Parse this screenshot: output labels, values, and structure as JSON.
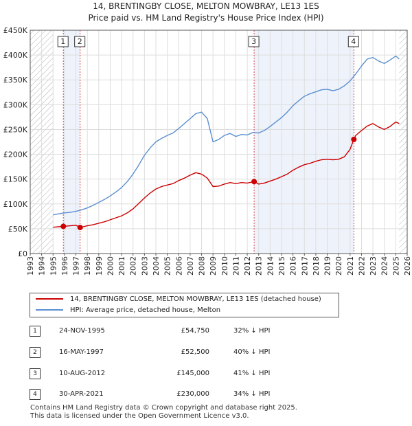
{
  "title_line1": "14, BRENTINGBY CLOSE, MELTON MOWBRAY, LE13 1ES",
  "title_line2": "Price paid vs. HM Land Registry's House Price Index (HPI)",
  "legend": {
    "property_label": "14, BRENTINGBY CLOSE, MELTON MOWBRAY, LE13 1ES (detached house)",
    "hpi_label": "HPI: Average price, detached house, Melton"
  },
  "colors": {
    "property": "#cc0000",
    "hpi": "#5b8fd0",
    "shade": "#eef2fb",
    "hatch": "#aaaaaa",
    "grid": "#dddddd",
    "vline": "#cc0000"
  },
  "sales": [
    {
      "num": "1",
      "date": "24-NOV-1995",
      "price": "£54,750",
      "hpi": "32% ↓ HPI"
    },
    {
      "num": "2",
      "date": "16-MAY-1997",
      "price": "£52,500",
      "hpi": "40% ↓ HPI"
    },
    {
      "num": "3",
      "date": "10-AUG-2012",
      "price": "£145,000",
      "hpi": "41% ↓ HPI"
    },
    {
      "num": "4",
      "date": "30-APR-2021",
      "price": "£230,000",
      "hpi": "34% ↓ HPI"
    }
  ],
  "footer_line1": "Contains HM Land Registry data © Crown copyright and database right 2025.",
  "footer_line2": "This data is licensed under the Open Government Licence v3.0.",
  "chart_data": {
    "type": "line",
    "title": "14, BRENTINGBY CLOSE, MELTON MOWBRAY, LE13 1ES",
    "subtitle": "Price paid vs. HM Land Registry's House Price Index (HPI)",
    "xlim": [
      1993,
      2026
    ],
    "ylim": [
      0,
      450000
    ],
    "x_ticks": [
      "1993",
      "1994",
      "1995",
      "1996",
      "1997",
      "1998",
      "1999",
      "2000",
      "2001",
      "2002",
      "2003",
      "2004",
      "2005",
      "2006",
      "2007",
      "2008",
      "2009",
      "2010",
      "2011",
      "2012",
      "2013",
      "2014",
      "2015",
      "2016",
      "2017",
      "2018",
      "2019",
      "2020",
      "2021",
      "2022",
      "2023",
      "2024",
      "2025",
      "2026"
    ],
    "y_ticks": [
      {
        "value": 0,
        "label": "£0"
      },
      {
        "value": 50000,
        "label": "£50K"
      },
      {
        "value": 100000,
        "label": "£100K"
      },
      {
        "value": 150000,
        "label": "£150K"
      },
      {
        "value": 200000,
        "label": "£200K"
      },
      {
        "value": 250000,
        "label": "£250K"
      },
      {
        "value": 300000,
        "label": "£300K"
      },
      {
        "value": 350000,
        "label": "£350K"
      },
      {
        "value": 400000,
        "label": "£400K"
      },
      {
        "value": 450000,
        "label": "£450K"
      }
    ],
    "data_range": [
      1995.0,
      2025.3
    ],
    "shaded_periods": [
      [
        1995.9,
        1997.37
      ],
      [
        2012.6,
        2021.33
      ]
    ],
    "sale_markers": [
      {
        "label": "1",
        "x": 1995.9,
        "y": 54750
      },
      {
        "label": "2",
        "x": 1997.37,
        "y": 52500
      },
      {
        "label": "3",
        "x": 2012.6,
        "y": 145000
      },
      {
        "label": "4",
        "x": 2021.33,
        "y": 230000
      }
    ],
    "series": [
      {
        "name": "HPI: Average price, detached house, Melton",
        "x": [
          1995.0,
          1995.5,
          1996.0,
          1996.5,
          1997.0,
          1997.5,
          1998.0,
          1998.5,
          1999.0,
          1999.5,
          2000.0,
          2000.5,
          2001.0,
          2001.5,
          2002.0,
          2002.5,
          2003.0,
          2003.5,
          2004.0,
          2004.5,
          2005.0,
          2005.5,
          2006.0,
          2006.5,
          2007.0,
          2007.5,
          2008.0,
          2008.5,
          2009.0,
          2009.5,
          2010.0,
          2010.5,
          2011.0,
          2011.5,
          2012.0,
          2012.5,
          2013.0,
          2013.5,
          2014.0,
          2014.5,
          2015.0,
          2015.5,
          2016.0,
          2016.5,
          2017.0,
          2017.5,
          2018.0,
          2018.5,
          2019.0,
          2019.5,
          2020.0,
          2020.5,
          2021.0,
          2021.5,
          2022.0,
          2022.5,
          2023.0,
          2023.5,
          2024.0,
          2024.5,
          2025.0,
          2025.3
        ],
        "values": [
          78000,
          80000,
          82000,
          83000,
          85000,
          88000,
          92000,
          97000,
          103000,
          109000,
          116000,
          124000,
          133000,
          145000,
          160000,
          178000,
          198000,
          213000,
          225000,
          232000,
          238000,
          243000,
          252000,
          262000,
          272000,
          282000,
          285000,
          272000,
          225000,
          230000,
          238000,
          242000,
          236000,
          240000,
          239000,
          244000,
          243000,
          248000,
          256000,
          265000,
          274000,
          285000,
          298000,
          308000,
          317000,
          322000,
          326000,
          330000,
          331000,
          328000,
          331000,
          338000,
          348000,
          362000,
          378000,
          392000,
          395000,
          388000,
          383000,
          390000,
          398000,
          392000
        ]
      },
      {
        "name": "14, BRENTINGBY CLOSE, MELTON MOWBRAY, LE13 1ES (detached house)",
        "x": [
          1995.0,
          1995.5,
          1995.9,
          1996.5,
          1997.0,
          1997.37,
          1998.0,
          1998.5,
          1999.0,
          1999.5,
          2000.0,
          2000.5,
          2001.0,
          2001.5,
          2002.0,
          2002.5,
          2003.0,
          2003.5,
          2004.0,
          2004.5,
          2005.0,
          2005.5,
          2006.0,
          2006.5,
          2007.0,
          2007.5,
          2008.0,
          2008.5,
          2009.0,
          2009.5,
          2010.0,
          2010.5,
          2011.0,
          2011.5,
          2012.0,
          2012.6,
          2013.0,
          2013.5,
          2014.0,
          2014.5,
          2015.0,
          2015.5,
          2016.0,
          2016.5,
          2017.0,
          2017.5,
          2018.0,
          2018.5,
          2019.0,
          2019.5,
          2020.0,
          2020.5,
          2021.0,
          2021.33,
          2021.5,
          2022.0,
          2022.5,
          2023.0,
          2023.5,
          2024.0,
          2024.5,
          2025.0,
          2025.3
        ],
        "values": [
          53000,
          54000,
          54750,
          56000,
          57000,
          52500,
          56000,
          58000,
          61000,
          64000,
          68000,
          72000,
          76000,
          82000,
          90000,
          101000,
          112000,
          122000,
          130000,
          135000,
          138000,
          141000,
          147000,
          152000,
          158000,
          163000,
          160000,
          152000,
          135000,
          136000,
          140000,
          143000,
          141000,
          143000,
          142000,
          145000,
          140000,
          142000,
          146000,
          150000,
          155000,
          160000,
          168000,
          174000,
          179000,
          182000,
          186000,
          189000,
          190000,
          189000,
          190000,
          195000,
          210000,
          230000,
          238000,
          248000,
          257000,
          262000,
          255000,
          250000,
          256000,
          265000,
          262000
        ]
      }
    ]
  }
}
